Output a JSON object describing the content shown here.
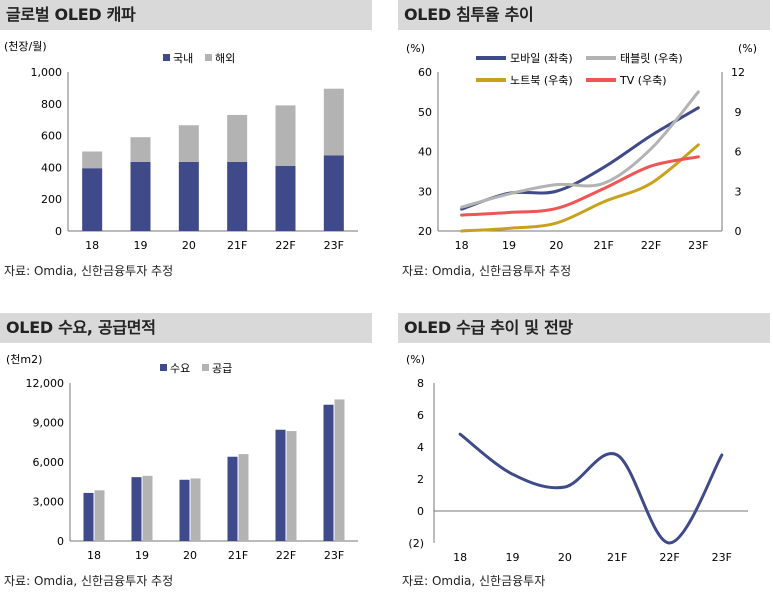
{
  "colors": {
    "navy": "#3f4a8a",
    "gray": "#b3b3b3",
    "gold": "#c9a21c",
    "red": "#f05454",
    "title_bg": "#d9d9d9"
  },
  "panels": {
    "p1": {
      "title": "글로벌 OLED 캐파",
      "source": "자료: Omdia, 신한금융투자 추정"
    },
    "p2": {
      "title": "OLED 침투율 추이",
      "source": "자료: Omdia, 신한금융투자 추정"
    },
    "p3": {
      "title": "OLED 수요, 공급면적",
      "source": "자료: Omdia, 신한금융투자 추정"
    },
    "p4": {
      "title": "OLED 수급 추이 및 전망",
      "source": "자료: Omdia, 신한금융투자"
    }
  },
  "chart_data": [
    {
      "type": "bar",
      "stacked": true,
      "unit": "(천장/월)",
      "categories": [
        "18",
        "19",
        "20",
        "21F",
        "22F",
        "23F"
      ],
      "series": [
        {
          "name": "국내",
          "values": [
            395,
            435,
            435,
            435,
            410,
            475
          ]
        },
        {
          "name": "해외",
          "values": [
            105,
            155,
            230,
            295,
            380,
            420
          ]
        }
      ],
      "yticks": [
        "0",
        "200",
        "400",
        "600",
        "800",
        "1,000"
      ],
      "ylim": [
        0,
        1000
      ],
      "legend": "top"
    },
    {
      "type": "line",
      "categories": [
        "18",
        "19",
        "20",
        "21F",
        "22F",
        "23F"
      ],
      "left_unit": "(%)",
      "right_unit": "(%)",
      "left_ylim": [
        20,
        60
      ],
      "right_ylim": [
        0,
        12
      ],
      "left_yticks": [
        "20",
        "30",
        "40",
        "50",
        "60"
      ],
      "right_yticks": [
        "0",
        "3",
        "6",
        "9",
        "12"
      ],
      "series": [
        {
          "name": "모바일 (좌축)",
          "axis": "left",
          "values": [
            25.5,
            29.5,
            30,
            36,
            44,
            51
          ]
        },
        {
          "name": "태블릿 (우축)",
          "axis": "right",
          "values": [
            1.8,
            2.8,
            3.5,
            3.6,
            6.2,
            10.5
          ]
        },
        {
          "name": "노트북 (우축)",
          "axis": "right",
          "values": [
            0,
            0.2,
            0.6,
            2.2,
            3.6,
            6.5
          ]
        },
        {
          "name": "TV (우축)",
          "axis": "right",
          "values": [
            1.2,
            1.4,
            1.7,
            3.2,
            4.9,
            5.6
          ]
        }
      ],
      "legend": "top"
    },
    {
      "type": "bar",
      "unit": "(천m2)",
      "categories": [
        "18",
        "19",
        "20",
        "21F",
        "22F",
        "23F"
      ],
      "series": [
        {
          "name": "수요",
          "values": [
            3650,
            4850,
            4650,
            6400,
            8450,
            10350
          ]
        },
        {
          "name": "공급",
          "values": [
            3850,
            4950,
            4750,
            6600,
            8350,
            10750
          ]
        }
      ],
      "yticks": [
        "0",
        "3,000",
        "6,000",
        "9,000",
        "12,000"
      ],
      "ylim": [
        0,
        12000
      ],
      "legend": "top"
    },
    {
      "type": "line",
      "unit": "(%)",
      "categories": [
        "18",
        "19",
        "20",
        "21F",
        "22F",
        "23F"
      ],
      "values": [
        4.8,
        2.3,
        1.5,
        3.5,
        -2.0,
        3.5
      ],
      "yticks": [
        "(2)",
        "0",
        "2",
        "4",
        "6",
        "8"
      ],
      "ytick_values": [
        -2,
        0,
        2,
        4,
        6,
        8
      ],
      "ylim": [
        -2,
        8
      ]
    }
  ]
}
